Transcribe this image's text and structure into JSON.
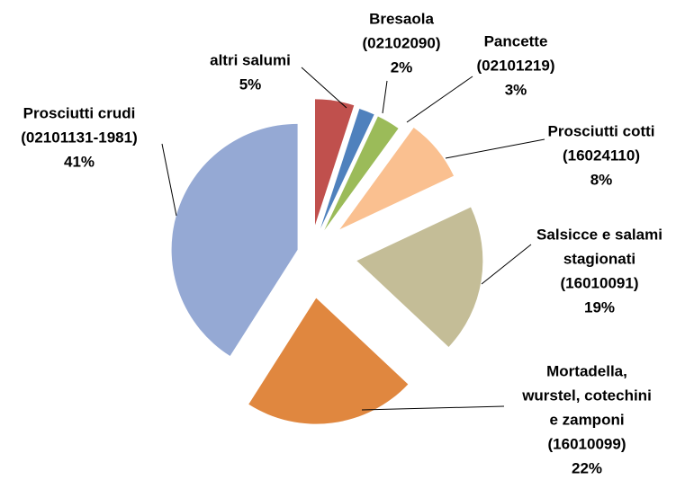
{
  "chart_data": {
    "type": "pie",
    "categories": [
      [
        "altri salumi"
      ],
      [
        "Bresaola",
        "(02102090)"
      ],
      [
        "Pancette",
        "(02101219)"
      ],
      [
        "Prosciutti cotti",
        "(16024110)"
      ],
      [
        "Salsicce e salami",
        "stagionati",
        "(16010091)"
      ],
      [
        "Mortadella,",
        "wurstel, cotechini",
        "e zamponi",
        "(16010099)"
      ],
      [
        "Prosciutti crudi",
        "(02101131-1981)"
      ]
    ],
    "values": [
      5,
      2,
      3,
      8,
      19,
      22,
      41
    ],
    "value_labels": [
      "5%",
      "2%",
      "3%",
      "8%",
      "19%",
      "22%",
      "41%"
    ],
    "colors": [
      "#c0504d",
      "#4f81bd",
      "#9bbb59",
      "#fac090",
      "#c4bd97",
      "#e0873f",
      "#95a9d4"
    ]
  }
}
